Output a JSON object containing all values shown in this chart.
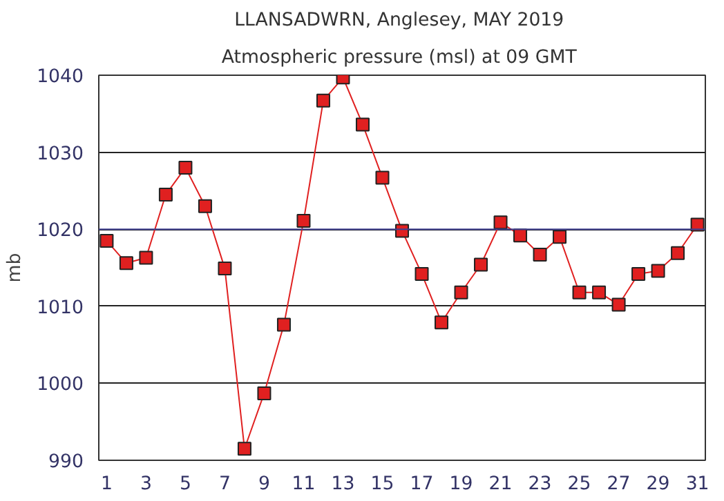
{
  "chart_data": {
    "type": "line",
    "title": "LLANSADWRN, Anglesey,  MAY 2019",
    "subtitle": "Atmospheric pressure  (msl) at 09 GMT",
    "ylabel": "mb",
    "x": [
      1,
      2,
      3,
      4,
      5,
      6,
      7,
      8,
      9,
      10,
      11,
      12,
      13,
      14,
      15,
      16,
      17,
      18,
      19,
      20,
      21,
      22,
      23,
      24,
      25,
      26,
      27,
      28,
      29,
      30,
      31
    ],
    "series": [
      {
        "color": "#e02020",
        "values": [
          1018.5,
          1015.6,
          1016.3,
          1024.5,
          1028,
          1023,
          1014.9,
          991.5,
          998.7,
          1007.6,
          1021.1,
          1036.7,
          1039.7,
          1033.6,
          1026.7,
          1019.8,
          1014.2,
          1007.9,
          1011.8,
          1015.4,
          1020.9,
          1019.2,
          1016.7,
          1019,
          1011.8,
          1011.8,
          1010.2,
          1014.2,
          1014.6,
          1016.9,
          1020.6
        ]
      }
    ],
    "xlim": [
      0.6,
      31.4
    ],
    "xticks": [
      1,
      3,
      5,
      7,
      9,
      11,
      13,
      15,
      17,
      19,
      21,
      23,
      25,
      27,
      29,
      31
    ],
    "ylim": [
      990,
      1040
    ],
    "yticks": [
      990,
      1000,
      1010,
      1020,
      1030,
      1040
    ],
    "grid": "y",
    "marker": "square",
    "line_style": "solid",
    "ref_lines": [
      {
        "axis": "y",
        "value": 1020,
        "color": "#404090"
      }
    ]
  }
}
